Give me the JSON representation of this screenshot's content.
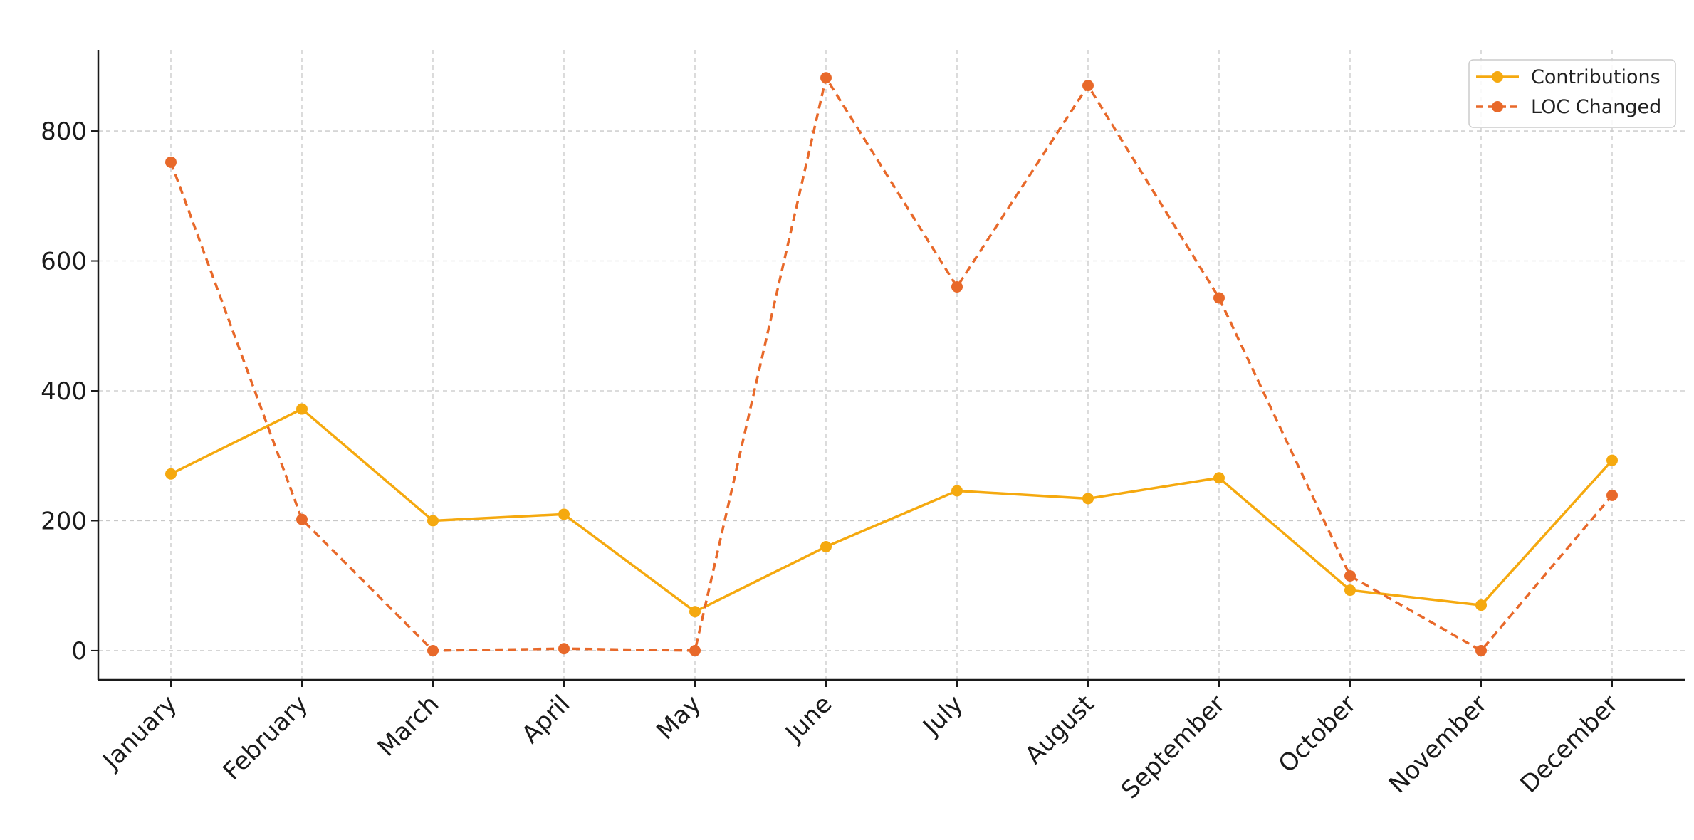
{
  "chart_data": {
    "type": "line",
    "categories": [
      "January",
      "February",
      "March",
      "April",
      "May",
      "June",
      "July",
      "August",
      "September",
      "October",
      "November",
      "December"
    ],
    "series": [
      {
        "name": "Contributions",
        "values": [
          272,
          372,
          200,
          210,
          60,
          160,
          246,
          234,
          266,
          93,
          70,
          293
        ],
        "color": "#F5A90F",
        "line_style": "solid",
        "marker": "circle"
      },
      {
        "name": "LOC Changed",
        "values": [
          752,
          202,
          0,
          3,
          0,
          882,
          560,
          870,
          543,
          115,
          0,
          239
        ],
        "color": "#E8692A",
        "line_style": "dashed",
        "marker": "circle"
      }
    ],
    "y_ticks": [
      0,
      200,
      400,
      600,
      800
    ],
    "ylim": [
      -45,
      925
    ],
    "grid": true,
    "legend_position": "top-right"
  }
}
